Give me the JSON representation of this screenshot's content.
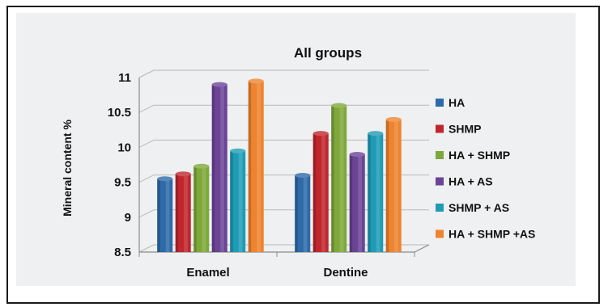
{
  "chart_data": {
    "type": "bar",
    "title": "All groups",
    "ylabel": "Mineral content %",
    "xlabel": "",
    "categories": [
      "Enamel",
      "Dentine"
    ],
    "ylim": [
      8.5,
      11
    ],
    "yticks": [
      "8.5",
      "9",
      "9.5",
      "10",
      "10.5",
      "11"
    ],
    "grid": true,
    "legend_position": "right",
    "series": [
      {
        "name": "HA",
        "values": [
          9.55,
          9.6
        ],
        "color": "#2e6aa8"
      },
      {
        "name": "SHMP",
        "values": [
          9.62,
          10.2
        ],
        "color": "#c0272d"
      },
      {
        "name": "HA + SHMP",
        "values": [
          9.73,
          10.6
        ],
        "color": "#7ea83a"
      },
      {
        "name": "HA + AS",
        "values": [
          10.9,
          9.9
        ],
        "color": "#6b4496"
      },
      {
        "name": "SHMP + AS",
        "values": [
          9.95,
          10.2
        ],
        "color": "#1f9bb5"
      },
      {
        "name": "HA + SHMP +AS",
        "values": [
          10.95,
          10.4
        ],
        "color": "#ee8430"
      }
    ]
  }
}
